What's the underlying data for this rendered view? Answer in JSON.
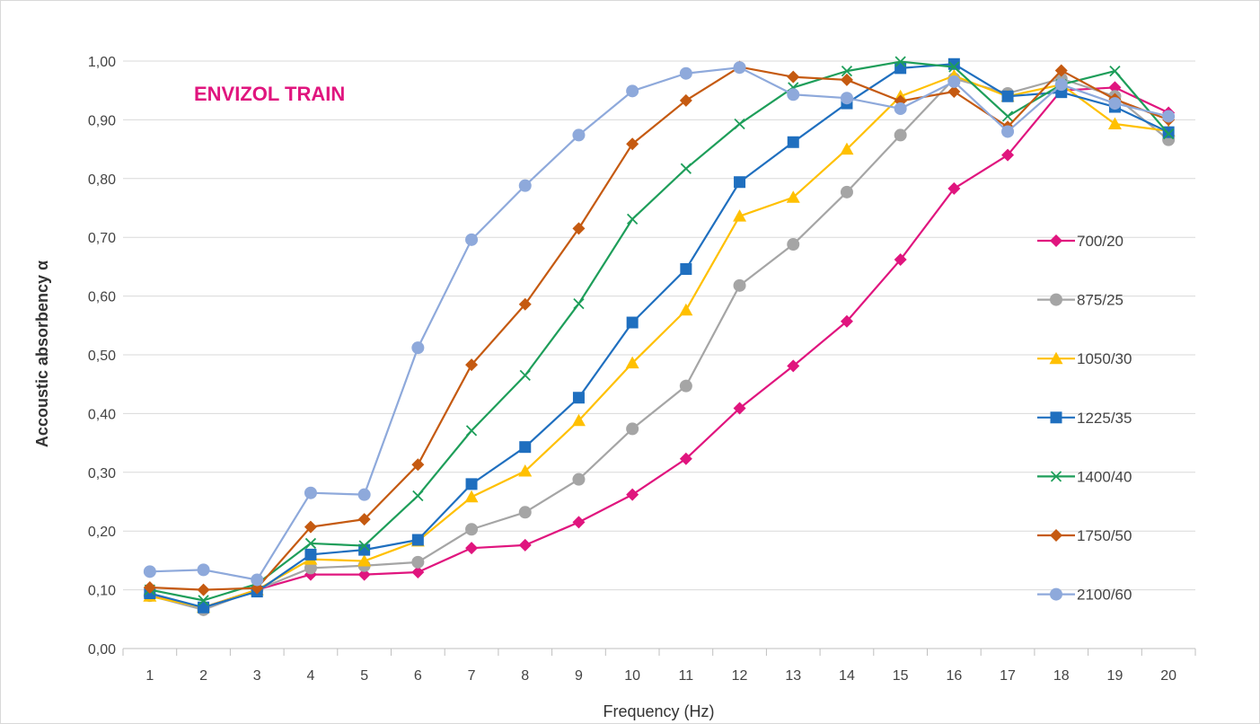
{
  "chart_data": {
    "type": "line",
    "title": "ENVIZOL TRAIN",
    "title_color": "#E0157E",
    "xlabel": "Frequency (Hz)",
    "ylabel": "Accoustic absorbency α",
    "categories": [
      "1",
      "2",
      "3",
      "4",
      "5",
      "6",
      "7",
      "8",
      "9",
      "10",
      "11",
      "12",
      "13",
      "14",
      "15",
      "16",
      "17",
      "18",
      "19",
      "20"
    ],
    "ylim": [
      0,
      1
    ],
    "yticks": [
      "0,00",
      "0,10",
      "0,20",
      "0,30",
      "0,40",
      "0,50",
      "0,60",
      "0,70",
      "0,80",
      "0,90",
      "1,00"
    ],
    "grid": true,
    "legend_position": "right",
    "series": [
      {
        "name": "700/20",
        "color": "#E0157E",
        "marker": "diamond",
        "values": [
          0.09,
          0.07,
          0.1,
          0.126,
          0.126,
          0.13,
          0.171,
          0.176,
          0.215,
          0.262,
          0.323,
          0.409,
          0.481,
          0.557,
          0.662,
          0.783,
          0.84,
          0.95,
          0.955,
          0.912
        ]
      },
      {
        "name": "875/25",
        "color": "#A5A5A5",
        "marker": "circle",
        "values": [
          0.09,
          0.066,
          0.1,
          0.137,
          0.141,
          0.147,
          0.203,
          0.232,
          0.288,
          0.374,
          0.447,
          0.618,
          0.688,
          0.777,
          0.874,
          0.97,
          0.945,
          0.97,
          0.94,
          0.866
        ]
      },
      {
        "name": "1050/30",
        "color": "#FFC000",
        "marker": "triangle",
        "values": [
          0.089,
          0.07,
          0.1,
          0.152,
          0.149,
          0.183,
          0.258,
          0.302,
          0.388,
          0.486,
          0.576,
          0.736,
          0.768,
          0.85,
          0.94,
          0.975,
          0.94,
          0.96,
          0.893,
          0.881
        ]
      },
      {
        "name": "1225/35",
        "color": "#1F6FBF",
        "marker": "square",
        "values": [
          0.094,
          0.07,
          0.097,
          0.16,
          0.168,
          0.185,
          0.28,
          0.343,
          0.427,
          0.555,
          0.646,
          0.794,
          0.862,
          0.928,
          0.988,
          0.995,
          0.94,
          0.947,
          0.922,
          0.879
        ]
      },
      {
        "name": "1400/40",
        "color": "#1E9E5A",
        "marker": "x",
        "values": [
          0.1,
          0.082,
          0.11,
          0.179,
          0.175,
          0.26,
          0.371,
          0.465,
          0.587,
          0.731,
          0.817,
          0.893,
          0.955,
          0.983,
          0.999,
          0.99,
          0.906,
          0.96,
          0.983,
          0.876
        ]
      },
      {
        "name": "1750/50",
        "color": "#C55A11",
        "marker": "diamond",
        "values": [
          0.104,
          0.1,
          0.103,
          0.207,
          0.22,
          0.313,
          0.483,
          0.586,
          0.715,
          0.859,
          0.933,
          0.99,
          0.973,
          0.968,
          0.932,
          0.948,
          0.888,
          0.984,
          0.935,
          0.9
        ]
      },
      {
        "name": "2100/60",
        "color": "#8EA9DB",
        "marker": "circle",
        "values": [
          0.131,
          0.134,
          0.117,
          0.265,
          0.262,
          0.512,
          0.696,
          0.788,
          0.874,
          0.949,
          0.979,
          0.989,
          0.943,
          0.937,
          0.919,
          0.965,
          0.88,
          0.96,
          0.928,
          0.906
        ]
      }
    ]
  }
}
